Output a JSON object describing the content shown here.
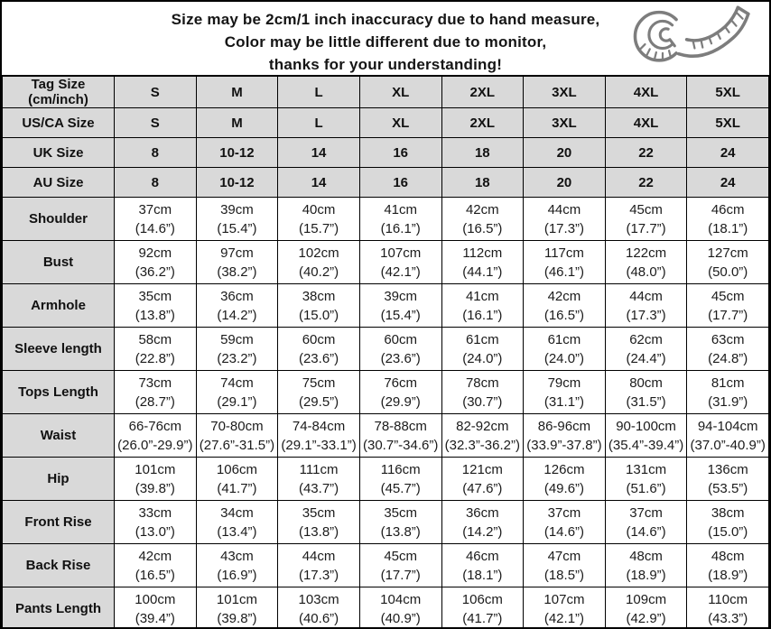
{
  "colors": {
    "header_row_bg": "#d9d9d9",
    "border": "#000000",
    "text": "#1a1a1a",
    "icon_gray": "#7d7d7d"
  },
  "notice": {
    "line1": "Size may be 2cm/1 inch inaccuracy due to hand measure,",
    "line2": "Color may be little different due to monitor,",
    "line3": "thanks for your understanding!",
    "icon": "tape-measure-icon"
  },
  "table": {
    "rows": [
      {
        "type": "size",
        "label": "Tag Size (cm/inch)",
        "label_lines": [
          "Tag Size",
          "(cm/inch)"
        ],
        "values": [
          "S",
          "M",
          "L",
          "XL",
          "2XL",
          "3XL",
          "4XL",
          "5XL"
        ]
      },
      {
        "type": "size",
        "label": "US/CA Size",
        "values": [
          "S",
          "M",
          "L",
          "XL",
          "2XL",
          "3XL",
          "4XL",
          "5XL"
        ]
      },
      {
        "type": "size",
        "label": "UK Size",
        "values": [
          "8",
          "10-12",
          "14",
          "16",
          "18",
          "20",
          "22",
          "24"
        ]
      },
      {
        "type": "size",
        "label": "AU Size",
        "values": [
          "8",
          "10-12",
          "14",
          "16",
          "18",
          "20",
          "22",
          "24"
        ]
      },
      {
        "type": "measure",
        "label": "Shoulder",
        "values": [
          [
            "37cm",
            "(14.6”)"
          ],
          [
            "39cm",
            "(15.4”)"
          ],
          [
            "40cm",
            "(15.7”)"
          ],
          [
            "41cm",
            "(16.1”)"
          ],
          [
            "42cm",
            "(16.5”)"
          ],
          [
            "44cm",
            "(17.3”)"
          ],
          [
            "45cm",
            "(17.7”)"
          ],
          [
            "46cm",
            "(18.1”)"
          ]
        ]
      },
      {
        "type": "measure",
        "label": "Bust",
        "values": [
          [
            "92cm",
            "(36.2”)"
          ],
          [
            "97cm",
            "(38.2”)"
          ],
          [
            "102cm",
            "(40.2”)"
          ],
          [
            "107cm",
            "(42.1”)"
          ],
          [
            "112cm",
            "(44.1”)"
          ],
          [
            "117cm",
            "(46.1”)"
          ],
          [
            "122cm",
            "(48.0”)"
          ],
          [
            "127cm",
            "(50.0”)"
          ]
        ]
      },
      {
        "type": "measure",
        "label": "Armhole",
        "values": [
          [
            "35cm",
            "(13.8”)"
          ],
          [
            "36cm",
            "(14.2”)"
          ],
          [
            "38cm",
            "(15.0”)"
          ],
          [
            "39cm",
            "(15.4”)"
          ],
          [
            "41cm",
            "(16.1”)"
          ],
          [
            "42cm",
            "(16.5”)"
          ],
          [
            "44cm",
            "(17.3”)"
          ],
          [
            "45cm",
            "(17.7”)"
          ]
        ]
      },
      {
        "type": "measure",
        "label": "Sleeve length",
        "values": [
          [
            "58cm",
            "(22.8”)"
          ],
          [
            "59cm",
            "(23.2”)"
          ],
          [
            "60cm",
            "(23.6”)"
          ],
          [
            "60cm",
            "(23.6”)"
          ],
          [
            "61cm",
            "(24.0”)"
          ],
          [
            "61cm",
            "(24.0”)"
          ],
          [
            "62cm",
            "(24.4”)"
          ],
          [
            "63cm",
            "(24.8”)"
          ]
        ]
      },
      {
        "type": "measure",
        "label": "Tops Length",
        "values": [
          [
            "73cm",
            "(28.7”)"
          ],
          [
            "74cm",
            "(29.1”)"
          ],
          [
            "75cm",
            "(29.5”)"
          ],
          [
            "76cm",
            "(29.9”)"
          ],
          [
            "78cm",
            "(30.7”)"
          ],
          [
            "79cm",
            "(31.1”)"
          ],
          [
            "80cm",
            "(31.5”)"
          ],
          [
            "81cm",
            "(31.9”)"
          ]
        ]
      },
      {
        "type": "measure",
        "label": "Waist",
        "values": [
          [
            "66-76cm",
            "(26.0”-29.9”)"
          ],
          [
            "70-80cm",
            "(27.6”-31.5”)"
          ],
          [
            "74-84cm",
            "(29.1”-33.1”)"
          ],
          [
            "78-88cm",
            "(30.7”-34.6”)"
          ],
          [
            "82-92cm",
            "(32.3”-36.2”)"
          ],
          [
            "86-96cm",
            "(33.9”-37.8”)"
          ],
          [
            "90-100cm",
            "(35.4”-39.4”)"
          ],
          [
            "94-104cm",
            "(37.0”-40.9”)"
          ]
        ]
      },
      {
        "type": "measure",
        "label": "Hip",
        "values": [
          [
            "101cm",
            "(39.8”)"
          ],
          [
            "106cm",
            "(41.7”)"
          ],
          [
            "111cm",
            "(43.7”)"
          ],
          [
            "116cm",
            "(45.7”)"
          ],
          [
            "121cm",
            "(47.6”)"
          ],
          [
            "126cm",
            "(49.6”)"
          ],
          [
            "131cm",
            "(51.6”)"
          ],
          [
            "136cm",
            "(53.5”)"
          ]
        ]
      },
      {
        "type": "measure",
        "label": "Front Rise",
        "values": [
          [
            "33cm",
            "(13.0”)"
          ],
          [
            "34cm",
            "(13.4”)"
          ],
          [
            "35cm",
            "(13.8”)"
          ],
          [
            "35cm",
            "(13.8”)"
          ],
          [
            "36cm",
            "(14.2”)"
          ],
          [
            "37cm",
            "(14.6”)"
          ],
          [
            "37cm",
            "(14.6”)"
          ],
          [
            "38cm",
            "(15.0”)"
          ]
        ]
      },
      {
        "type": "measure",
        "label": "Back Rise",
        "values": [
          [
            "42cm",
            "(16.5”)"
          ],
          [
            "43cm",
            "(16.9”)"
          ],
          [
            "44cm",
            "(17.3”)"
          ],
          [
            "45cm",
            "(17.7”)"
          ],
          [
            "46cm",
            "(18.1”)"
          ],
          [
            "47cm",
            "(18.5”)"
          ],
          [
            "48cm",
            "(18.9”)"
          ],
          [
            "48cm",
            "(18.9”)"
          ]
        ]
      },
      {
        "type": "measure",
        "label": "Pants Length",
        "values": [
          [
            "100cm",
            "(39.4”)"
          ],
          [
            "101cm",
            "(39.8”)"
          ],
          [
            "103cm",
            "(40.6”)"
          ],
          [
            "104cm",
            "(40.9”)"
          ],
          [
            "106cm",
            "(41.7”)"
          ],
          [
            "107cm",
            "(42.1”)"
          ],
          [
            "109cm",
            "(42.9”)"
          ],
          [
            "110cm",
            "(43.3”)"
          ]
        ]
      }
    ]
  }
}
